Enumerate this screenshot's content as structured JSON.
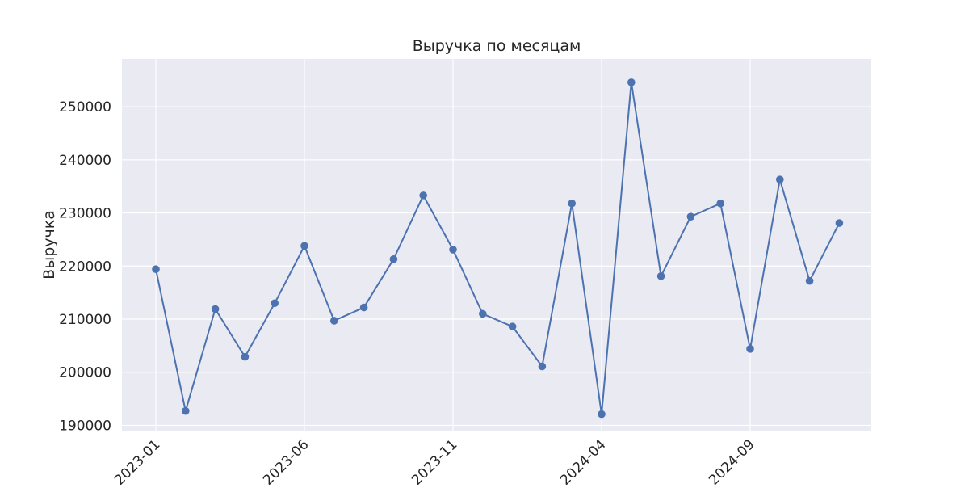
{
  "chart_data": {
    "type": "line",
    "title": "Выручка по месяцам",
    "xlabel": "",
    "ylabel": "Выручка",
    "x": [
      "2023-01",
      "2023-02",
      "2023-03",
      "2023-04",
      "2023-05",
      "2023-06",
      "2023-07",
      "2023-08",
      "2023-09",
      "2023-10",
      "2023-11",
      "2023-12",
      "2024-01",
      "2024-02",
      "2024-03",
      "2024-04",
      "2024-05",
      "2024-06",
      "2024-07",
      "2024-08",
      "2024-09",
      "2024-10",
      "2024-11",
      "2024-12"
    ],
    "series": [
      {
        "values": [
          219400,
          192700,
          211900,
          202900,
          213000,
          223800,
          209700,
          212200,
          221300,
          233300,
          223100,
          211000,
          208600,
          201100,
          231800,
          192100,
          254600,
          218100,
          229300,
          231800,
          204400,
          236300,
          217200,
          228100
        ]
      }
    ],
    "x_ticks": [
      "2023-01",
      "2023-06",
      "2023-11",
      "2024-04",
      "2024-09"
    ],
    "y_ticks": [
      190000,
      200000,
      210000,
      220000,
      230000,
      240000,
      250000
    ],
    "ylim": [
      189000,
      259000
    ],
    "grid": true,
    "colors": {
      "line": "#4c72b0",
      "plot_bg": "#eaeaf2",
      "grid": "#ffffff"
    }
  }
}
